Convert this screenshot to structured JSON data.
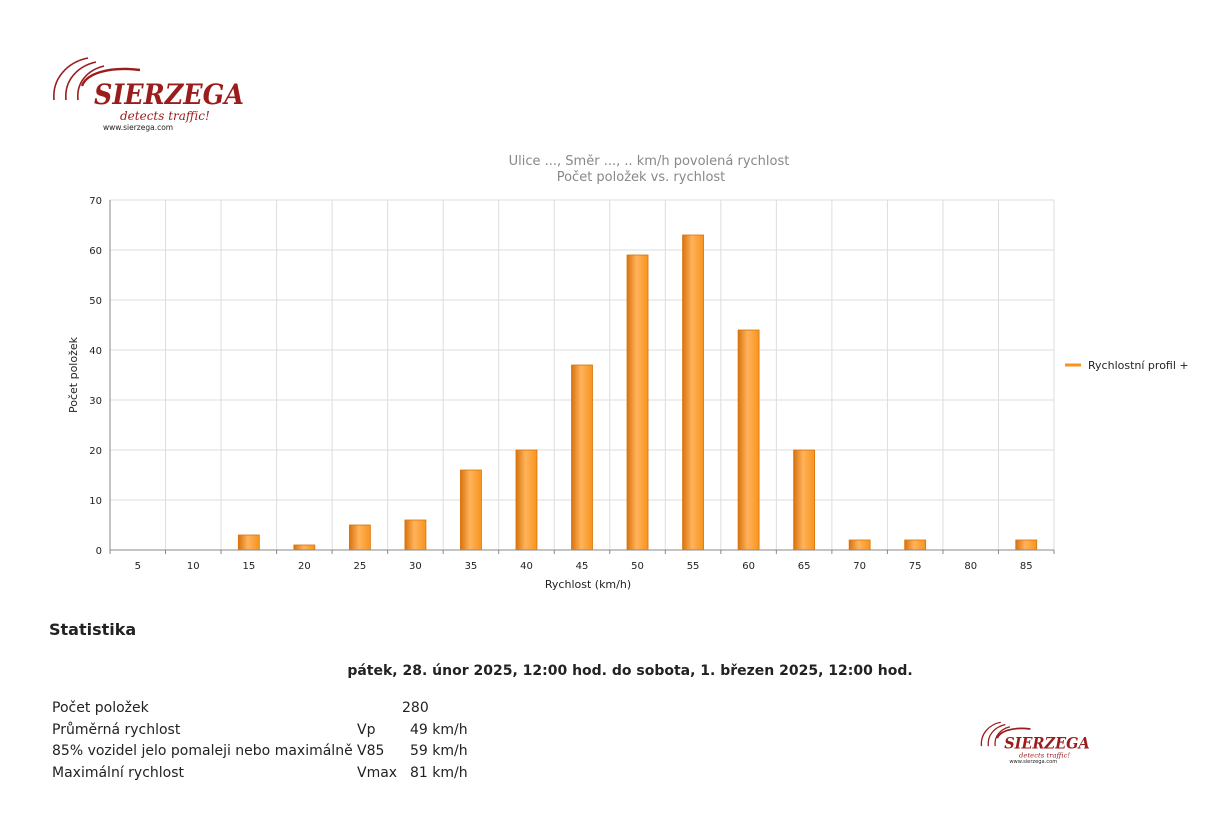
{
  "logo": {
    "brand": "SIERZEGA",
    "tagline": "detects traffic!",
    "url": "www.sierzega.com"
  },
  "colors": {
    "bar": "#f7941d",
    "bar_dark": "#d9730d",
    "brand": "#9b1c1c",
    "grid": "#dddddd",
    "title": "#888888"
  },
  "chart_data": {
    "type": "bar",
    "title": "Ulice ..., Směr ..., .. km/h povolená rychlost",
    "subtitle": "Počet položek vs. rychlost",
    "xlabel": "Rychlost (km/h)",
    "ylabel": "Počet položek",
    "categories": [
      "5",
      "10",
      "15",
      "20",
      "25",
      "30",
      "35",
      "40",
      "45",
      "50",
      "55",
      "60",
      "65",
      "70",
      "75",
      "80",
      "85"
    ],
    "series": [
      {
        "name": "Rychlostní profil +",
        "values": [
          0,
          0,
          3,
          1,
          5,
          6,
          16,
          20,
          37,
          59,
          63,
          44,
          20,
          2,
          2,
          0,
          2
        ]
      }
    ],
    "ylim": [
      0,
      70
    ],
    "yticks": [
      0,
      10,
      20,
      30,
      40,
      50,
      60,
      70
    ],
    "grid": true,
    "legend": "right"
  },
  "statistics": {
    "title": "Statistika",
    "period": "pátek, 28. únor 2025, 12:00 hod. do sobota, 1. březen 2025, 12:00 hod.",
    "rows": [
      {
        "label": "Počet položek",
        "symbol": "",
        "value": "280"
      },
      {
        "label": "Průměrná rychlost",
        "symbol": "Vp",
        "value": "49 km/h"
      },
      {
        "label": "85% vozidel jelo pomaleji nebo maximálně",
        "symbol": "V85",
        "value": "59 km/h"
      },
      {
        "label": "Maximální rychlost",
        "symbol": "Vmax",
        "value": "81 km/h"
      }
    ]
  }
}
